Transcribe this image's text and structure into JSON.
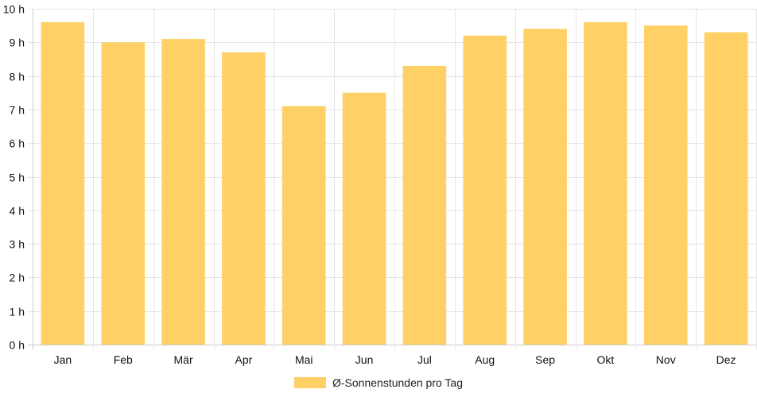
{
  "chart_data": {
    "type": "bar",
    "categories": [
      "Jan",
      "Feb",
      "Mär",
      "Apr",
      "Mai",
      "Jun",
      "Jul",
      "Aug",
      "Sep",
      "Okt",
      "Nov",
      "Dez"
    ],
    "series": [
      {
        "name": "Ø-Sonnenstunden pro Tag",
        "values": [
          9.6,
          9.0,
          9.1,
          8.7,
          7.1,
          7.5,
          8.3,
          9.2,
          9.4,
          9.6,
          9.5,
          9.3
        ]
      }
    ],
    "ylim": [
      0,
      10
    ],
    "y_ticks": [
      0,
      1,
      2,
      3,
      4,
      5,
      6,
      7,
      8,
      9,
      10
    ],
    "y_tick_suffix": " h",
    "grid": true,
    "legend_position": "bottom",
    "colors": {
      "bar": "#fed066",
      "grid": "#e5e5e5",
      "axis": "#cccccc"
    }
  }
}
